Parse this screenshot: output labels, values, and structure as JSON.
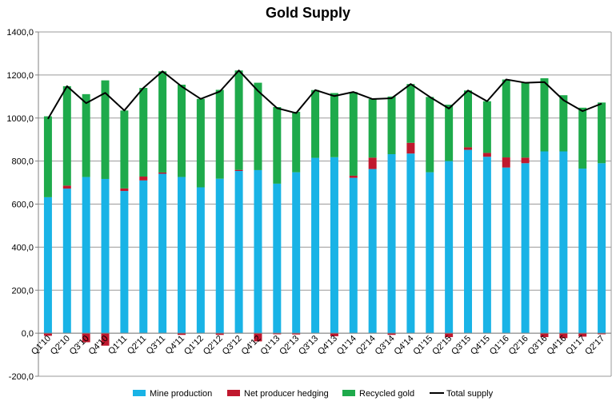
{
  "chart_data": {
    "type": "bar",
    "stacked": true,
    "title": "Gold Supply",
    "xlabel": "",
    "ylabel": "",
    "ylim": [
      -200,
      1400
    ],
    "ytick_step": 200,
    "ytick_labels": [
      "-200,0",
      "0,0",
      "200,0",
      "400,0",
      "600,0",
      "800,0",
      "1000,0",
      "1200,0",
      "1400,0"
    ],
    "grid": true,
    "legend_position": "bottom",
    "categories": [
      "Q1'10",
      "Q2'10",
      "Q3'10",
      "Q4'10",
      "Q1'11",
      "Q2'11",
      "Q3'11",
      "Q4'11",
      "Q1'12",
      "Q2'12",
      "Q3'12",
      "Q4'12",
      "Q1'13",
      "Q2'13",
      "Q3'13",
      "Q4'13",
      "Q1'14",
      "Q2'14",
      "Q3'14",
      "Q4'14",
      "Q1'15",
      "Q2'15",
      "Q3'15",
      "Q4'15",
      "Q1'16",
      "Q2'16",
      "Q3'16",
      "Q4'16",
      "Q1'17",
      "Q2'17"
    ],
    "series": [
      {
        "name": "Mine production",
        "kind": "bar",
        "color": "#19b3e6",
        "values": [
          632,
          672,
          726,
          717,
          661,
          710,
          741,
          726,
          678,
          718,
          754,
          758,
          695,
          748,
          815,
          818,
          722,
          763,
          832,
          835,
          748,
          800,
          852,
          820,
          770,
          790,
          845,
          845,
          765,
          790
        ]
      },
      {
        "name": "Net producer hedging",
        "kind": "bar",
        "color": "#c0182e",
        "values": [
          -12,
          14,
          -42,
          -58,
          12,
          18,
          6,
          -8,
          0,
          -8,
          5,
          -38,
          -5,
          -6,
          0,
          -14,
          10,
          53,
          -8,
          50,
          0,
          -18,
          12,
          18,
          47,
          26,
          -18,
          -23,
          -16,
          -5
        ]
      },
      {
        "name": "Recycled gold",
        "kind": "bar",
        "color": "#1eaa4b",
        "values": [
          376,
          462,
          385,
          458,
          362,
          412,
          470,
          429,
          411,
          413,
          462,
          406,
          356,
          281,
          315,
          298,
          389,
          272,
          268,
          273,
          350,
          262,
          264,
          240,
          362,
          348,
          340,
          261,
          283,
          282
        ]
      },
      {
        "name": "Total supply",
        "kind": "line",
        "color": "#000000",
        "values": [
          996,
          1148,
          1069,
          1117,
          1035,
          1140,
          1217,
          1147,
          1089,
          1123,
          1221,
          1126,
          1046,
          1023,
          1130,
          1102,
          1121,
          1088,
          1092,
          1158,
          1098,
          1044,
          1128,
          1078,
          1179,
          1164,
          1167,
          1083,
          1032,
          1067
        ]
      }
    ]
  }
}
